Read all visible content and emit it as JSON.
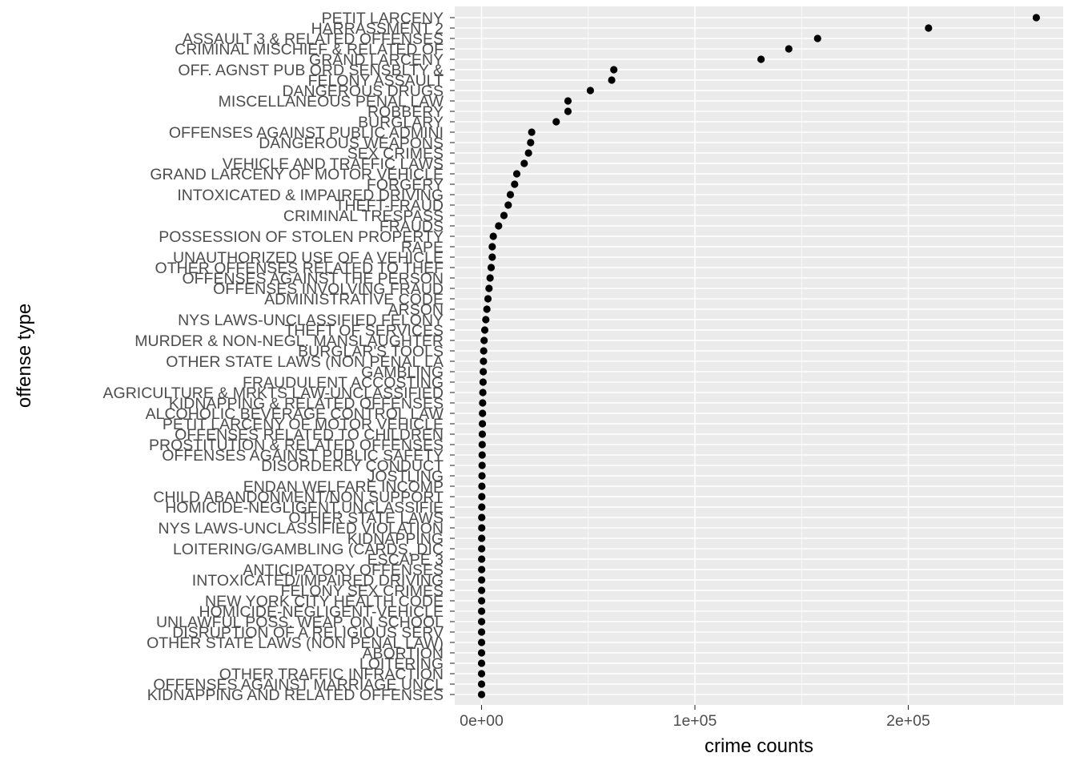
{
  "chart_data": {
    "type": "scatter",
    "title": "",
    "xlabel": "crime counts",
    "ylabel": "offense type",
    "xlim": [
      -10000,
      272000
    ],
    "x_ticks": [
      0,
      100000,
      200000
    ],
    "x_tick_labels": [
      "0e+00",
      "1e+05",
      "2e+05"
    ],
    "grid": true,
    "legend": "none",
    "colors": {
      "panel_bg": "#ebebeb",
      "grid": "#ffffff",
      "point": "#000000",
      "tick_text": "#4d4d4d",
      "tick_mark": "#333333"
    },
    "points": [
      {
        "category": "PETIT LARCENY",
        "value": 260000
      },
      {
        "category": "HARRASSMENT 2",
        "value": 209500
      },
      {
        "category": "ASSAULT 3 & RELATED OFFENSES",
        "value": 157500
      },
      {
        "category": "CRIMINAL MISCHIEF & RELATED OF",
        "value": 144000
      },
      {
        "category": "GRAND LARCENY",
        "value": 131000
      },
      {
        "category": "OFF. AGNST PUB ORD SENSBLTY &",
        "value": 62000
      },
      {
        "category": "FELONY ASSAULT",
        "value": 61000
      },
      {
        "category": "DANGEROUS DRUGS",
        "value": 51000
      },
      {
        "category": "MISCELLANEOUS PENAL LAW",
        "value": 40500
      },
      {
        "category": "ROBBERY",
        "value": 40500
      },
      {
        "category": "BURGLARY",
        "value": 35000
      },
      {
        "category": "OFFENSES AGAINST PUBLIC ADMINI",
        "value": 23500
      },
      {
        "category": "DANGEROUS WEAPONS",
        "value": 23000
      },
      {
        "category": "SEX CRIMES",
        "value": 22000
      },
      {
        "category": "VEHICLE AND TRAFFIC LAWS",
        "value": 20000
      },
      {
        "category": "GRAND LARCENY OF MOTOR VEHICLE",
        "value": 16500
      },
      {
        "category": "FORGERY",
        "value": 15500
      },
      {
        "category": "INTOXICATED & IMPAIRED DRIVING",
        "value": 13500
      },
      {
        "category": "THEFT-FRAUD",
        "value": 12500
      },
      {
        "category": "CRIMINAL TRESPASS",
        "value": 10500
      },
      {
        "category": "FRAUDS",
        "value": 8000
      },
      {
        "category": "POSSESSION OF STOLEN PROPERTY",
        "value": 5500
      },
      {
        "category": "RAPE",
        "value": 5000
      },
      {
        "category": "UNAUTHORIZED USE OF A VEHICLE",
        "value": 5000
      },
      {
        "category": "OTHER OFFENSES RELATED TO THEF",
        "value": 4500
      },
      {
        "category": "OFFENSES AGAINST THE PERSON",
        "value": 4000
      },
      {
        "category": "OFFENSES INVOLVING FRAUD",
        "value": 3500
      },
      {
        "category": "ADMINISTRATIVE CODE",
        "value": 3000
      },
      {
        "category": "ARSON",
        "value": 2500
      },
      {
        "category": "NYS LAWS-UNCLASSIFIED FELONY",
        "value": 2000
      },
      {
        "category": "THEFT OF SERVICES",
        "value": 1500
      },
      {
        "category": "MURDER & NON-NEGL. MANSLAUGHTER",
        "value": 1200
      },
      {
        "category": "BURGLAR'S TOOLS",
        "value": 1000
      },
      {
        "category": "OTHER STATE LAWS (NON PENAL LA",
        "value": 900
      },
      {
        "category": "GAMBLING",
        "value": 800
      },
      {
        "category": "FRAUDULENT ACCOSTING",
        "value": 700
      },
      {
        "category": "AGRICULTURE & MRKTS LAW-UNCLASSIFIED",
        "value": 600
      },
      {
        "category": "KIDNAPPING & RELATED OFFENSES",
        "value": 500
      },
      {
        "category": "ALCOHOLIC BEVERAGE CONTROL LAW",
        "value": 450
      },
      {
        "category": "PETIT LARCENY OF MOTOR VEHICLE",
        "value": 400
      },
      {
        "category": "OFFENSES RELATED TO CHILDREN",
        "value": 350
      },
      {
        "category": "PROSTITUTION & RELATED OFFENSES",
        "value": 300
      },
      {
        "category": "OFFENSES AGAINST PUBLIC SAFETY",
        "value": 280
      },
      {
        "category": "DISORDERLY CONDUCT",
        "value": 250
      },
      {
        "category": "JOSTLING",
        "value": 200
      },
      {
        "category": "ENDAN WELFARE INCOMP",
        "value": 150
      },
      {
        "category": "CHILD ABANDONMENT/NON SUPPORT",
        "value": 120
      },
      {
        "category": "HOMICIDE-NEGLIGENT,UNCLASSIFIE",
        "value": 100
      },
      {
        "category": "OTHER STATE LAWS",
        "value": 90
      },
      {
        "category": "NYS LAWS-UNCLASSIFIED VIOLATION",
        "value": 80
      },
      {
        "category": "KIDNAPPING",
        "value": 70
      },
      {
        "category": "LOITERING/GAMBLING (CARDS, DIC",
        "value": 60
      },
      {
        "category": "ESCAPE 3",
        "value": 50
      },
      {
        "category": "ANTICIPATORY OFFENSES",
        "value": 45
      },
      {
        "category": "INTOXICATED/IMPAIRED DRIVING",
        "value": 40
      },
      {
        "category": "FELONY SEX CRIMES",
        "value": 35
      },
      {
        "category": "NEW YORK CITY HEALTH CODE",
        "value": 30
      },
      {
        "category": "HOMICIDE-NEGLIGENT-VEHICLE",
        "value": 25
      },
      {
        "category": "UNLAWFUL POSS. WEAP. ON SCHOOL",
        "value": 20
      },
      {
        "category": "DISRUPTION OF A RELIGIOUS SERV",
        "value": 15
      },
      {
        "category": "OTHER STATE LAWS (NON PENAL LAW)",
        "value": 12
      },
      {
        "category": "ABORTION",
        "value": 8
      },
      {
        "category": "LOITERING",
        "value": 6
      },
      {
        "category": "OTHER TRAFFIC INFRACTION",
        "value": 4
      },
      {
        "category": "OFFENSES AGAINST MARRIAGE UNCL",
        "value": 3
      },
      {
        "category": "KIDNAPPING AND RELATED OFFENSES",
        "value": 2
      }
    ]
  }
}
